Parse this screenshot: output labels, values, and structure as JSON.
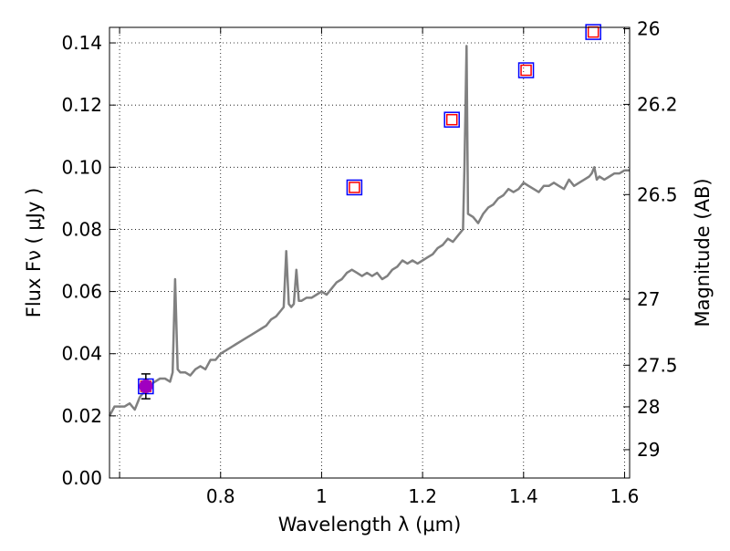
{
  "chart_data": {
    "type": "line",
    "xlabel": "Wavelength  λ (μm)",
    "ylabel": "Flux  Fν  ( μJy )",
    "y2label": "Magnitude (AB)",
    "xlim": [
      0.58,
      1.61
    ],
    "ylim": [
      0.0,
      0.145
    ],
    "grid": true,
    "x_ticks": [
      {
        "value": 0.6,
        "label": ""
      },
      {
        "value": 0.8,
        "label": "0.8"
      },
      {
        "value": 1.0,
        "label": "1"
      },
      {
        "value": 1.2,
        "label": "1.2"
      },
      {
        "value": 1.4,
        "label": "1.4"
      },
      {
        "value": 1.6,
        "label": "1.6"
      }
    ],
    "y_ticks": [
      {
        "value": 0.0,
        "label": "0.00"
      },
      {
        "value": 0.02,
        "label": "0.02"
      },
      {
        "value": 0.04,
        "label": "0.04"
      },
      {
        "value": 0.06,
        "label": "0.06"
      },
      {
        "value": 0.08,
        "label": "0.08"
      },
      {
        "value": 0.1,
        "label": "0.10"
      },
      {
        "value": 0.12,
        "label": "0.12"
      },
      {
        "value": 0.14,
        "label": "0.14"
      }
    ],
    "mag_ticks": [
      {
        "mag": 26.0,
        "label": "26"
      },
      {
        "mag": 26.2,
        "label": "26.2"
      },
      {
        "mag": 26.5,
        "label": "26.5"
      },
      {
        "mag": 27.0,
        "label": "27"
      },
      {
        "mag": 27.5,
        "label": "27.5"
      },
      {
        "mag": 28.0,
        "label": "28"
      },
      {
        "mag": 29.0,
        "label": "29"
      }
    ],
    "series": [
      {
        "type": "line",
        "color": "#808080",
        "x": [
          0.58,
          0.59,
          0.6,
          0.61,
          0.62,
          0.63,
          0.64,
          0.65,
          0.66,
          0.67,
          0.68,
          0.69,
          0.7,
          0.705,
          0.71,
          0.715,
          0.72,
          0.73,
          0.74,
          0.75,
          0.76,
          0.77,
          0.78,
          0.79,
          0.8,
          0.81,
          0.82,
          0.83,
          0.84,
          0.85,
          0.86,
          0.87,
          0.88,
          0.89,
          0.9,
          0.91,
          0.92,
          0.925,
          0.93,
          0.935,
          0.94,
          0.945,
          0.95,
          0.955,
          0.96,
          0.97,
          0.98,
          0.99,
          1.0,
          1.01,
          1.02,
          1.03,
          1.04,
          1.05,
          1.06,
          1.07,
          1.08,
          1.09,
          1.1,
          1.11,
          1.12,
          1.13,
          1.14,
          1.15,
          1.16,
          1.17,
          1.18,
          1.19,
          1.2,
          1.21,
          1.22,
          1.23,
          1.24,
          1.25,
          1.26,
          1.27,
          1.28,
          1.283,
          1.287,
          1.29,
          1.3,
          1.31,
          1.32,
          1.33,
          1.34,
          1.35,
          1.36,
          1.37,
          1.38,
          1.39,
          1.4,
          1.41,
          1.42,
          1.43,
          1.44,
          1.45,
          1.46,
          1.47,
          1.48,
          1.49,
          1.5,
          1.51,
          1.52,
          1.53,
          1.535,
          1.54,
          1.545,
          1.55,
          1.56,
          1.57,
          1.58,
          1.59,
          1.6,
          1.61
        ],
        "y": [
          0.02,
          0.023,
          0.023,
          0.023,
          0.024,
          0.022,
          0.026,
          0.028,
          0.03,
          0.031,
          0.032,
          0.032,
          0.031,
          0.034,
          0.064,
          0.035,
          0.034,
          0.034,
          0.033,
          0.035,
          0.036,
          0.035,
          0.038,
          0.038,
          0.04,
          0.041,
          0.042,
          0.043,
          0.044,
          0.045,
          0.046,
          0.047,
          0.048,
          0.049,
          0.051,
          0.052,
          0.054,
          0.055,
          0.073,
          0.056,
          0.055,
          0.056,
          0.067,
          0.057,
          0.057,
          0.058,
          0.058,
          0.059,
          0.06,
          0.059,
          0.061,
          0.063,
          0.064,
          0.066,
          0.067,
          0.066,
          0.065,
          0.066,
          0.065,
          0.066,
          0.064,
          0.065,
          0.067,
          0.068,
          0.07,
          0.069,
          0.07,
          0.069,
          0.07,
          0.071,
          0.072,
          0.074,
          0.075,
          0.077,
          0.076,
          0.078,
          0.08,
          0.1,
          0.139,
          0.085,
          0.084,
          0.082,
          0.085,
          0.087,
          0.088,
          0.09,
          0.091,
          0.093,
          0.092,
          0.093,
          0.095,
          0.094,
          0.093,
          0.092,
          0.094,
          0.094,
          0.095,
          0.094,
          0.093,
          0.096,
          0.094,
          0.095,
          0.096,
          0.097,
          0.098,
          0.1,
          0.096,
          0.097,
          0.096,
          0.097,
          0.098,
          0.098,
          0.099,
          0.099
        ]
      },
      {
        "type": "scatter",
        "marker": "square",
        "color": "#0000ff",
        "x": [
          0.652,
          1.065,
          1.258,
          1.405,
          1.538
        ],
        "y": [
          0.0295,
          0.0935,
          0.1153,
          0.1312,
          0.1435
        ]
      },
      {
        "type": "scatter",
        "marker": "square",
        "color": "#ff0000",
        "x": [
          0.652,
          1.065,
          1.258,
          1.405,
          1.538
        ],
        "y": [
          0.0295,
          0.0935,
          0.1153,
          0.1312,
          0.1435
        ]
      },
      {
        "type": "scatter",
        "marker": "circle",
        "color": "#a000c0",
        "x": [
          0.652
        ],
        "y": [
          0.0295
        ],
        "yerr": [
          0.004
        ]
      }
    ]
  }
}
